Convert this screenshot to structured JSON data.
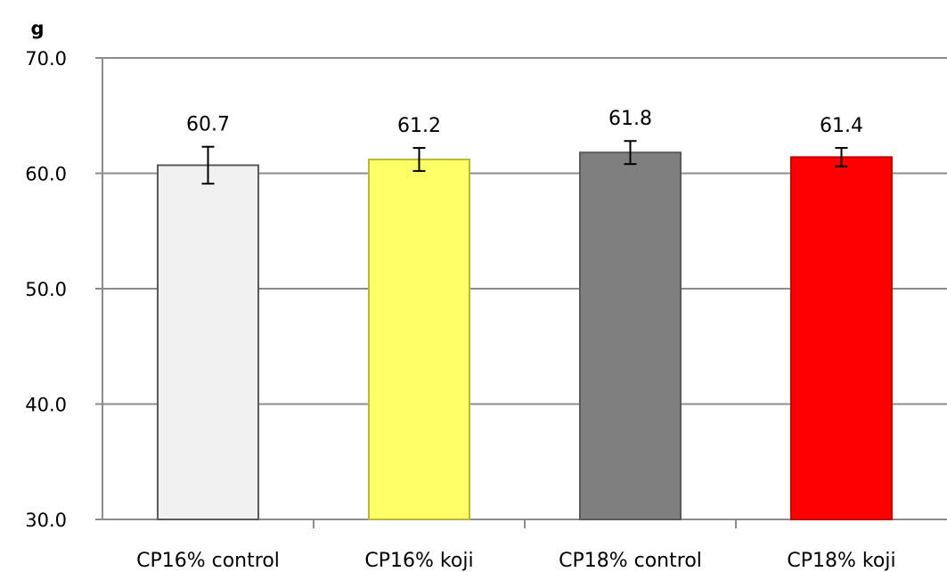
{
  "chart_data": {
    "type": "bar",
    "ylabel": "g",
    "ylim": [
      30.0,
      70.0
    ],
    "yticks": [
      "30.0",
      "40.0",
      "50.0",
      "60.0",
      "70.0"
    ],
    "grid": true,
    "categories": [
      "CP16% control",
      "CP16% koji",
      "CP18% control",
      "CP18% koji"
    ],
    "values": [
      60.7,
      61.2,
      61.8,
      61.4
    ],
    "value_labels": [
      "60.7",
      "61.2",
      "61.8",
      "61.4"
    ],
    "error": [
      1.6,
      1.0,
      1.0,
      0.8
    ],
    "colors": [
      "#f0f0f0",
      "#ffff66",
      "#7f7f7f",
      "#ff0000"
    ],
    "border_colors": [
      "#5a5a5a",
      "#b8b83a",
      "#5a5a5a",
      "#c00000"
    ]
  }
}
